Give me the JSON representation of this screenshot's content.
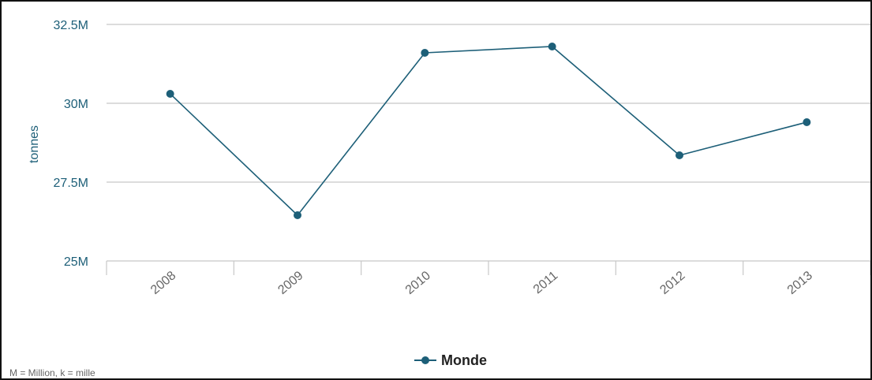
{
  "chart_data": {
    "type": "line",
    "categories": [
      "2008",
      "2009",
      "2010",
      "2011",
      "2012",
      "2013"
    ],
    "series": [
      {
        "name": "Monde",
        "values": [
          30.3,
          26.45,
          31.6,
          31.8,
          28.35,
          29.4
        ],
        "color": "#1d5f78"
      }
    ],
    "ylabel": "tonnes",
    "ylim": [
      25,
      32.5
    ],
    "y_ticks": [
      25,
      27.5,
      30,
      32.5
    ],
    "y_tick_labels": [
      "25M",
      "27.5M",
      "30M",
      "32.5M"
    ],
    "unit_scale": "M",
    "grid": true,
    "legend": "bottom-center",
    "footnote": "M = Million, k = mille"
  },
  "colors": {
    "axis_text": "#1d5f78",
    "grid": "#c8c8c8",
    "tick_label": "#666666"
  }
}
